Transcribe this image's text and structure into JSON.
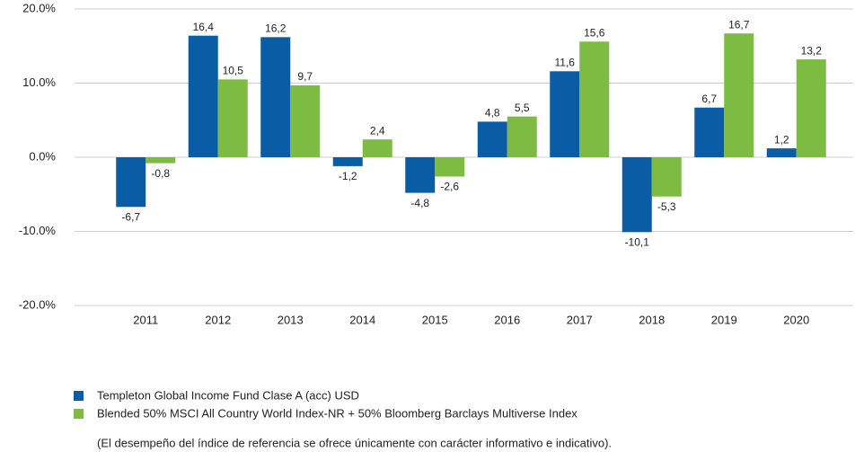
{
  "chart_data": {
    "type": "bar",
    "categories": [
      "2011",
      "2012",
      "2013",
      "2014",
      "2015",
      "2016",
      "2017",
      "2018",
      "2019",
      "2020"
    ],
    "series": [
      {
        "name": "Templeton Global Income Fund Clase A (acc) USD",
        "color": "#0a5ca4",
        "values": [
          -6.7,
          16.4,
          16.2,
          -1.2,
          -4.8,
          4.8,
          11.6,
          -10.1,
          6.7,
          1.2
        ],
        "value_labels": [
          "-6,7",
          "16,4",
          "16,2",
          "-1,2",
          "-4,8",
          "4,8",
          "11,6",
          "-10,1",
          "6,7",
          "1,2"
        ]
      },
      {
        "name": "Blended 50% MSCI All Country World Index-NR + 50% Bloomberg Barclays Multiverse Index",
        "color": "#7dbb42",
        "values": [
          -0.8,
          10.5,
          9.7,
          2.4,
          -2.6,
          5.5,
          15.6,
          -5.3,
          16.7,
          13.2
        ],
        "value_labels": [
          "-0,8",
          "10,5",
          "9,7",
          "2,4",
          "-2,6",
          "5,5",
          "15,6",
          "-5,3",
          "16,7",
          "13,2"
        ]
      }
    ],
    "ylim": [
      -20,
      20
    ],
    "yticks": [
      {
        "value": -20,
        "label": "-20.0%"
      },
      {
        "value": -10,
        "label": "-10.0%"
      },
      {
        "value": 0,
        "label": "0.0%"
      },
      {
        "value": 10,
        "label": "10.0%"
      },
      {
        "value": 20,
        "label": "20.0%"
      }
    ],
    "grid": true,
    "note": "(El desempeño del índice de referencia se ofrece únicamente con carácter informativo e indicativo)."
  }
}
